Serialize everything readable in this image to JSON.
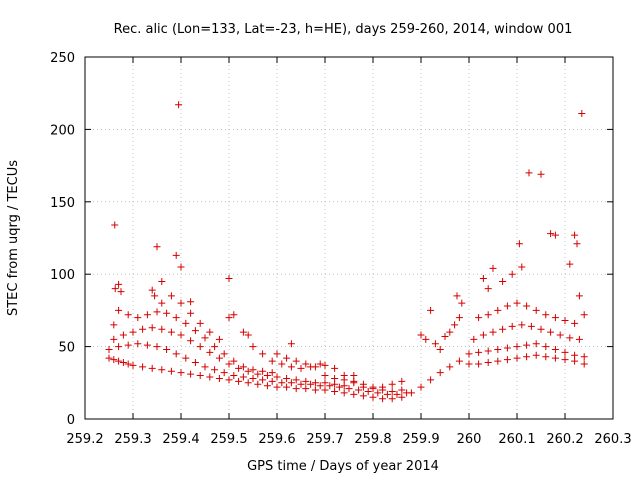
{
  "chart_data": {
    "type": "scatter",
    "title": "Rec. alic (Lon=133, Lat=-23, h=HE), days 259-260, 2014, window 001",
    "xlabel": "GPS time / Days of year 2014",
    "ylabel": "STEC from uqrg / TECUs",
    "xlim": [
      259.2,
      260.3
    ],
    "ylim": [
      0,
      250
    ],
    "xticks": [
      "259.2",
      "259.3",
      "259.4",
      "259.5",
      "259.6",
      "259.7",
      "259.8",
      "259.9",
      "260",
      "260.1",
      "260.2",
      "260.3"
    ],
    "yticks": [
      "0",
      "50",
      "100",
      "150",
      "200",
      "250"
    ],
    "grid": true,
    "marker": "plus",
    "series": [
      {
        "color": "#d40000",
        "points": [
          [
            259.25,
            42
          ],
          [
            259.26,
            41
          ],
          [
            259.27,
            40
          ],
          [
            259.28,
            39
          ],
          [
            259.29,
            38
          ],
          [
            259.3,
            37
          ],
          [
            259.32,
            36
          ],
          [
            259.34,
            35
          ],
          [
            259.36,
            34
          ],
          [
            259.38,
            33
          ],
          [
            259.4,
            32
          ],
          [
            259.42,
            31
          ],
          [
            259.44,
            30
          ],
          [
            259.46,
            29
          ],
          [
            259.48,
            28
          ],
          [
            259.5,
            27
          ],
          [
            259.52,
            26
          ],
          [
            259.54,
            25
          ],
          [
            259.56,
            24
          ],
          [
            259.58,
            23
          ],
          [
            259.6,
            22
          ],
          [
            259.62,
            22
          ],
          [
            259.64,
            21
          ],
          [
            259.66,
            21
          ],
          [
            259.68,
            20
          ],
          [
            259.7,
            20
          ],
          [
            259.72,
            19
          ],
          [
            259.74,
            18
          ],
          [
            259.76,
            17
          ],
          [
            259.78,
            16
          ],
          [
            259.8,
            15
          ],
          [
            259.82,
            14
          ],
          [
            259.84,
            14
          ],
          [
            259.86,
            15
          ],
          [
            259.88,
            18
          ],
          [
            259.9,
            22
          ],
          [
            259.92,
            27
          ],
          [
            259.94,
            32
          ],
          [
            259.96,
            36
          ],
          [
            259.98,
            40
          ],
          [
            259.25,
            48
          ],
          [
            259.27,
            50
          ],
          [
            259.29,
            51
          ],
          [
            259.31,
            52
          ],
          [
            259.33,
            51
          ],
          [
            259.35,
            50
          ],
          [
            259.37,
            48
          ],
          [
            259.39,
            45
          ],
          [
            259.41,
            42
          ],
          [
            259.43,
            39
          ],
          [
            259.45,
            36
          ],
          [
            259.47,
            34
          ],
          [
            259.49,
            32
          ],
          [
            259.51,
            30
          ],
          [
            259.53,
            29
          ],
          [
            259.55,
            28
          ],
          [
            259.57,
            27
          ],
          [
            259.59,
            26
          ],
          [
            259.61,
            25
          ],
          [
            259.63,
            25
          ],
          [
            259.65,
            24
          ],
          [
            259.67,
            24
          ],
          [
            259.69,
            23
          ],
          [
            259.71,
            23
          ],
          [
            259.73,
            22
          ],
          [
            259.75,
            21
          ],
          [
            259.77,
            20
          ],
          [
            259.79,
            19
          ],
          [
            259.81,
            18
          ],
          [
            259.83,
            17
          ],
          [
            259.85,
            17
          ],
          [
            259.87,
            18
          ],
          [
            259.26,
            55
          ],
          [
            259.28,
            58
          ],
          [
            259.3,
            60
          ],
          [
            259.32,
            62
          ],
          [
            259.34,
            63
          ],
          [
            259.36,
            62
          ],
          [
            259.38,
            60
          ],
          [
            259.4,
            58
          ],
          [
            259.42,
            54
          ],
          [
            259.44,
            50
          ],
          [
            259.46,
            46
          ],
          [
            259.48,
            42
          ],
          [
            259.5,
            38
          ],
          [
            259.52,
            35
          ],
          [
            259.54,
            33
          ],
          [
            259.56,
            31
          ],
          [
            259.58,
            30
          ],
          [
            259.6,
            29
          ],
          [
            259.62,
            28
          ],
          [
            259.64,
            27
          ],
          [
            259.66,
            26
          ],
          [
            259.68,
            25
          ],
          [
            259.7,
            25
          ],
          [
            259.72,
            24
          ],
          [
            259.74,
            23
          ],
          [
            259.26,
            65
          ],
          [
            259.27,
            75
          ],
          [
            259.29,
            72
          ],
          [
            259.31,
            70
          ],
          [
            259.33,
            72
          ],
          [
            259.35,
            74
          ],
          [
            259.37,
            73
          ],
          [
            259.39,
            70
          ],
          [
            259.41,
            66
          ],
          [
            259.43,
            61
          ],
          [
            259.45,
            56
          ],
          [
            259.47,
            50
          ],
          [
            259.49,
            45
          ],
          [
            259.51,
            40
          ],
          [
            259.53,
            36
          ],
          [
            259.55,
            34
          ],
          [
            259.57,
            33
          ],
          [
            259.59,
            32
          ],
          [
            259.36,
            80
          ],
          [
            259.38,
            85
          ],
          [
            259.4,
            80
          ],
          [
            259.42,
            73
          ],
          [
            259.44,
            66
          ],
          [
            259.46,
            60
          ],
          [
            259.48,
            55
          ],
          [
            259.5,
            70
          ],
          [
            259.51,
            72
          ],
          [
            259.53,
            60
          ],
          [
            259.55,
            50
          ],
          [
            259.57,
            45
          ],
          [
            259.59,
            40
          ],
          [
            259.61,
            38
          ],
          [
            259.63,
            36
          ],
          [
            259.65,
            35
          ],
          [
            259.67,
            36
          ],
          [
            259.69,
            38
          ],
          [
            259.7,
            37
          ],
          [
            259.72,
            35
          ],
          [
            259.74,
            30
          ],
          [
            259.76,
            25
          ],
          [
            259.78,
            22
          ],
          [
            259.8,
            21
          ],
          [
            259.82,
            22
          ],
          [
            259.84,
            24
          ],
          [
            259.86,
            26
          ],
          [
            259.6,
            45
          ],
          [
            259.62,
            42
          ],
          [
            259.64,
            40
          ],
          [
            259.66,
            38
          ],
          [
            259.68,
            36
          ],
          [
            259.7,
            30
          ],
          [
            259.72,
            28
          ],
          [
            259.74,
            27
          ],
          [
            259.76,
            26
          ],
          [
            259.78,
            24
          ],
          [
            259.8,
            22
          ],
          [
            259.82,
            20
          ],
          [
            259.84,
            19
          ],
          [
            259.86,
            20
          ],
          [
            259.262,
            134
          ],
          [
            259.263,
            90
          ],
          [
            259.27,
            93
          ],
          [
            259.275,
            88
          ],
          [
            259.34,
            89
          ],
          [
            259.345,
            85
          ],
          [
            259.35,
            119
          ],
          [
            259.36,
            95
          ],
          [
            259.39,
            113
          ],
          [
            259.4,
            105
          ],
          [
            259.395,
            217
          ],
          [
            259.42,
            81
          ],
          [
            259.5,
            97
          ],
          [
            259.54,
            58
          ],
          [
            259.63,
            52
          ],
          [
            259.76,
            30
          ],
          [
            259.9,
            58
          ],
          [
            259.91,
            55
          ],
          [
            259.92,
            75
          ],
          [
            259.93,
            52
          ],
          [
            259.94,
            48
          ],
          [
            259.95,
            57
          ],
          [
            259.96,
            60
          ],
          [
            259.97,
            65
          ],
          [
            259.98,
            70
          ],
          [
            259.975,
            85
          ],
          [
            259.985,
            80
          ],
          [
            260.0,
            45
          ],
          [
            260.02,
            46
          ],
          [
            260.04,
            47
          ],
          [
            260.06,
            48
          ],
          [
            260.08,
            49
          ],
          [
            260.1,
            50
          ],
          [
            260.12,
            51
          ],
          [
            260.14,
            52
          ],
          [
            260.16,
            50
          ],
          [
            260.18,
            48
          ],
          [
            260.2,
            46
          ],
          [
            260.22,
            44
          ],
          [
            260.24,
            43
          ],
          [
            260.0,
            38
          ],
          [
            260.02,
            38
          ],
          [
            260.04,
            39
          ],
          [
            260.06,
            40
          ],
          [
            260.08,
            41
          ],
          [
            260.1,
            42
          ],
          [
            260.12,
            43
          ],
          [
            260.14,
            44
          ],
          [
            260.16,
            43
          ],
          [
            260.18,
            42
          ],
          [
            260.2,
            41
          ],
          [
            260.22,
            40
          ],
          [
            260.24,
            38
          ],
          [
            260.01,
            55
          ],
          [
            260.03,
            58
          ],
          [
            260.05,
            60
          ],
          [
            260.07,
            62
          ],
          [
            260.09,
            64
          ],
          [
            260.11,
            65
          ],
          [
            260.13,
            64
          ],
          [
            260.15,
            62
          ],
          [
            260.17,
            60
          ],
          [
            260.19,
            58
          ],
          [
            260.21,
            56
          ],
          [
            260.23,
            55
          ],
          [
            260.02,
            70
          ],
          [
            260.04,
            72
          ],
          [
            260.06,
            75
          ],
          [
            260.08,
            78
          ],
          [
            260.1,
            80
          ],
          [
            260.12,
            78
          ],
          [
            260.14,
            75
          ],
          [
            260.16,
            72
          ],
          [
            260.18,
            70
          ],
          [
            260.2,
            68
          ],
          [
            260.22,
            66
          ],
          [
            260.03,
            97
          ],
          [
            260.04,
            90
          ],
          [
            260.05,
            104
          ],
          [
            260.07,
            95
          ],
          [
            260.09,
            100
          ],
          [
            260.11,
            105
          ],
          [
            260.105,
            121
          ],
          [
            260.125,
            170
          ],
          [
            260.15,
            169
          ],
          [
            260.17,
            128
          ],
          [
            260.18,
            127
          ],
          [
            260.21,
            107
          ],
          [
            260.22,
            127
          ],
          [
            260.225,
            121
          ],
          [
            260.235,
            211
          ],
          [
            260.23,
            85
          ],
          [
            260.24,
            72
          ]
        ]
      }
    ]
  }
}
